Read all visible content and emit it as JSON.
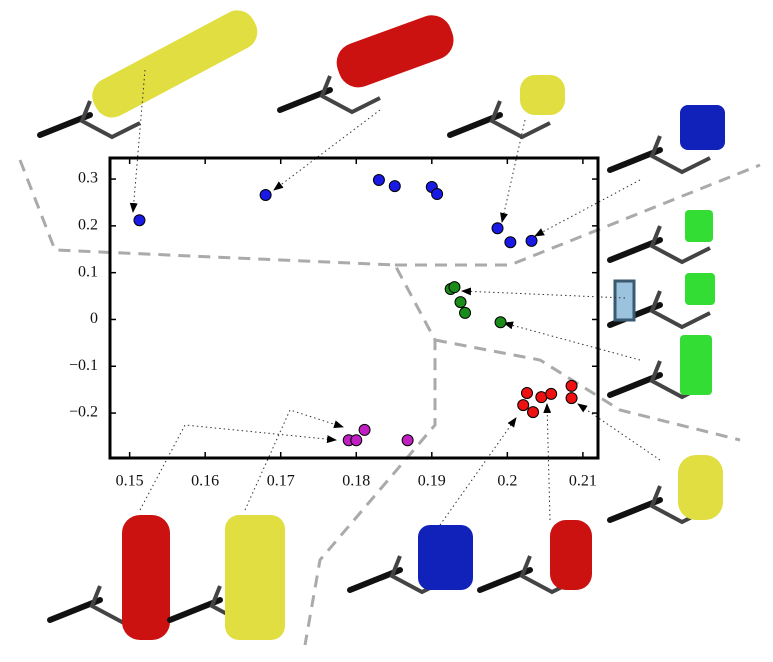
{
  "chart_data": {
    "type": "scatter",
    "xlim": [
      0.1474,
      0.212
    ],
    "ylim": [
      -0.296,
      0.345
    ],
    "xticks": [
      0.15,
      0.16,
      0.17,
      0.18,
      0.19,
      0.2,
      0.21
    ],
    "yticks": [
      0.3,
      0.2,
      0.1,
      0,
      {
        "value": -0.1,
        "label": "−0.1"
      },
      {
        "value": -0.2,
        "label": "−0.2"
      }
    ],
    "series": [
      {
        "color": "#1a1ae6",
        "x": [
          0.1513,
          0.168,
          0.183,
          0.1851,
          0.19,
          0.1907,
          0.1987,
          0.2004,
          0.2032
        ],
        "values": [
          0.212,
          0.266,
          0.298,
          0.285,
          0.283,
          0.268,
          0.195,
          0.165,
          0.168
        ]
      },
      {
        "color": "#1a8c1a",
        "x": [
          0.1925,
          0.193,
          0.1938,
          0.1944,
          0.1991
        ],
        "values": [
          0.065,
          0.069,
          0.037,
          0.014,
          -0.006
        ]
      },
      {
        "color": "#ee1111",
        "x": [
          0.2026,
          0.2021,
          0.2034,
          0.2045,
          0.2058,
          0.2085,
          0.2085
        ],
        "values": [
          -0.157,
          -0.183,
          -0.198,
          -0.166,
          -0.159,
          -0.142,
          -0.168
        ]
      },
      {
        "color": "#c020c0",
        "x": [
          0.179,
          0.18,
          0.1811,
          0.1868
        ],
        "values": [
          -0.258,
          -0.258,
          -0.236,
          -0.258
        ]
      }
    ]
  }
}
